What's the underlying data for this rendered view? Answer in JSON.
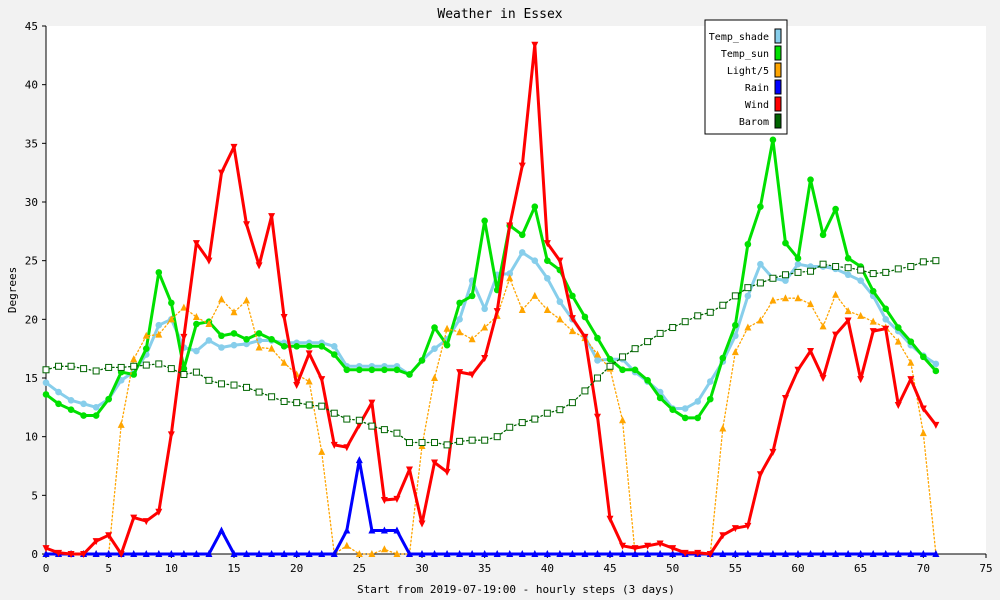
{
  "chart_data": {
    "type": "line",
    "title": "Weather in Essex",
    "xlabel": "Start from 2019-07-19:00 - hourly steps (3 days)",
    "ylabel": "Degrees",
    "xlim": [
      0,
      75
    ],
    "ylim": [
      0,
      45
    ],
    "x_ticks": [
      0,
      5,
      10,
      15,
      20,
      25,
      30,
      35,
      40,
      45,
      50,
      55,
      60,
      65,
      70,
      75
    ],
    "y_ticks": [
      0,
      5,
      10,
      15,
      20,
      25,
      30,
      35,
      40,
      45
    ],
    "grid": false,
    "legend_position": "top-right",
    "x": [
      0,
      1,
      2,
      3,
      4,
      5,
      6,
      7,
      8,
      9,
      10,
      11,
      12,
      13,
      14,
      15,
      16,
      17,
      18,
      19,
      20,
      21,
      22,
      23,
      24,
      25,
      26,
      27,
      28,
      29,
      30,
      31,
      32,
      33,
      34,
      35,
      36,
      37,
      38,
      39,
      40,
      41,
      42,
      43,
      44,
      45,
      46,
      47,
      48,
      49,
      50,
      51,
      52,
      53,
      54,
      55,
      56,
      57,
      58,
      59,
      60,
      61,
      62,
      63,
      64,
      65,
      66,
      67,
      68,
      69,
      70,
      71
    ],
    "series": [
      {
        "name": "Temp_shade",
        "color": "#87ceeb",
        "marker": "circle",
        "line_style": "solid",
        "values": [
          14.6,
          13.8,
          13.1,
          12.8,
          12.5,
          13.2,
          14.8,
          15.5,
          17.0,
          19.5,
          20.0,
          17.6,
          17.3,
          18.2,
          17.6,
          17.8,
          17.9,
          18.2,
          18.2,
          18.0,
          18.0,
          18.0,
          18.0,
          17.7,
          16.0,
          16.0,
          16.0,
          16.0,
          16.0,
          15.3,
          16.5,
          17.5,
          18.3,
          20.0,
          23.3,
          20.9,
          23.8,
          23.9,
          25.7,
          25.0,
          23.5,
          21.5,
          20.0,
          18.5,
          16.5,
          16.6,
          16.6,
          15.5,
          14.7,
          13.8,
          12.4,
          12.4,
          13.0,
          14.7,
          16.4,
          18.6,
          22.0,
          24.7,
          23.5,
          23.3,
          24.7,
          24.5,
          24.5,
          24.3,
          23.8,
          23.3,
          22.0,
          20.0,
          19.0,
          17.8,
          16.9,
          16.2
        ]
      },
      {
        "name": "Temp_sun",
        "color": "#00e000",
        "marker": "circle",
        "line_style": "solid",
        "values": [
          13.6,
          12.8,
          12.3,
          11.8,
          11.8,
          13.2,
          15.5,
          15.3,
          17.5,
          24.0,
          21.4,
          15.8,
          19.6,
          19.8,
          18.6,
          18.8,
          18.3,
          18.8,
          18.3,
          17.7,
          17.7,
          17.7,
          17.7,
          17.0,
          15.7,
          15.7,
          15.7,
          15.7,
          15.7,
          15.3,
          16.5,
          19.3,
          17.8,
          21.4,
          22.0,
          28.4,
          22.5,
          28.0,
          27.2,
          29.6,
          25.0,
          24.2,
          22.0,
          20.2,
          18.4,
          16.6,
          15.7,
          15.7,
          14.8,
          13.3,
          12.3,
          11.6,
          11.6,
          13.2,
          16.7,
          19.5,
          26.4,
          29.6,
          35.3,
          26.5,
          25.2,
          31.9,
          27.2,
          29.4,
          25.2,
          24.5,
          22.4,
          20.9,
          19.3,
          18.1,
          16.8,
          15.6
        ]
      },
      {
        "name": "Light/5",
        "color": "#ffa500",
        "marker": "triangle-up",
        "line_style": "dotted",
        "values": [
          0,
          0,
          0,
          0,
          0,
          0,
          11.0,
          16.6,
          18.6,
          18.7,
          20.0,
          21.0,
          20.2,
          19.6,
          21.7,
          20.6,
          21.6,
          17.6,
          17.5,
          16.3,
          15.3,
          14.7,
          8.7,
          0,
          0.7,
          0,
          0,
          0.4,
          0,
          0,
          9.2,
          15.0,
          19.2,
          18.9,
          18.3,
          19.3,
          20.3,
          23.5,
          20.8,
          22.0,
          20.8,
          20.0,
          19.0,
          18.4,
          17.0,
          15.8,
          11.4,
          0,
          0,
          0,
          0,
          0,
          0,
          0,
          10.7,
          17.2,
          19.3,
          19.9,
          21.6,
          21.8,
          21.8,
          21.3,
          19.4,
          22.1,
          20.7,
          20.3,
          19.8,
          19.3,
          18.1,
          16.3,
          10.3,
          0
        ]
      },
      {
        "name": "Rain",
        "color": "#0000ff",
        "marker": "triangle-up",
        "line_style": "solid",
        "values": [
          0,
          0,
          0,
          0,
          0,
          0,
          0,
          0,
          0,
          0,
          0,
          0,
          0,
          0,
          2.0,
          0,
          0,
          0,
          0,
          0,
          0,
          0,
          0,
          0,
          2.0,
          8.0,
          2.0,
          2.0,
          2.0,
          0,
          0,
          0,
          0,
          0,
          0,
          0,
          0,
          0,
          0,
          0,
          0,
          0,
          0,
          0,
          0,
          0,
          0,
          0,
          0,
          0,
          0,
          0,
          0,
          0,
          0,
          0,
          0,
          0,
          0,
          0,
          0,
          0,
          0,
          0,
          0,
          0,
          0,
          0,
          0,
          0,
          0,
          0
        ]
      },
      {
        "name": "Wind",
        "color": "#ff0000",
        "marker": "triangle-down",
        "line_style": "solid",
        "values": [
          0.5,
          0.1,
          0,
          0,
          1.1,
          1.6,
          0,
          3.1,
          2.8,
          3.6,
          10.2,
          18.5,
          26.5,
          25.0,
          32.5,
          34.7,
          28.1,
          24.6,
          28.8,
          20.2,
          14.4,
          17.1,
          14.9,
          9.3,
          9.1,
          11.0,
          12.9,
          4.6,
          4.7,
          7.2,
          2.6,
          7.8,
          7.0,
          15.5,
          15.3,
          16.7,
          20.7,
          28.0,
          33.1,
          43.4,
          26.5,
          25.0,
          20.1,
          18.5,
          11.7,
          3.0,
          0.7,
          0.5,
          0.7,
          0.9,
          0.5,
          0.1,
          0.1,
          0,
          1.6,
          2.2,
          2.4,
          6.8,
          8.7,
          13.3,
          15.7,
          17.3,
          15.0,
          18.7,
          19.9,
          14.9,
          19.0,
          19.2,
          12.7,
          14.9,
          12.4,
          11.0
        ]
      },
      {
        "name": "Barom",
        "color": "#006400",
        "marker": "square",
        "line_style": "dotted",
        "values": [
          15.7,
          16.0,
          16.0,
          15.8,
          15.6,
          15.9,
          15.9,
          16.0,
          16.1,
          16.2,
          15.8,
          15.3,
          15.5,
          14.8,
          14.5,
          14.4,
          14.2,
          13.8,
          13.4,
          13.0,
          12.9,
          12.7,
          12.6,
          12.0,
          11.5,
          11.4,
          10.9,
          10.6,
          10.3,
          9.5,
          9.5,
          9.5,
          9.3,
          9.6,
          9.7,
          9.7,
          10.0,
          10.8,
          11.2,
          11.5,
          12.0,
          12.3,
          12.9,
          13.9,
          15.0,
          16.0,
          16.8,
          17.5,
          18.1,
          18.8,
          19.3,
          19.8,
          20.3,
          20.6,
          21.2,
          22.0,
          22.7,
          23.1,
          23.5,
          23.8,
          24.0,
          24.1,
          24.7,
          24.5,
          24.4,
          24.2,
          23.9,
          24.0,
          24.3,
          24.5,
          24.9,
          25.0
        ]
      }
    ]
  }
}
